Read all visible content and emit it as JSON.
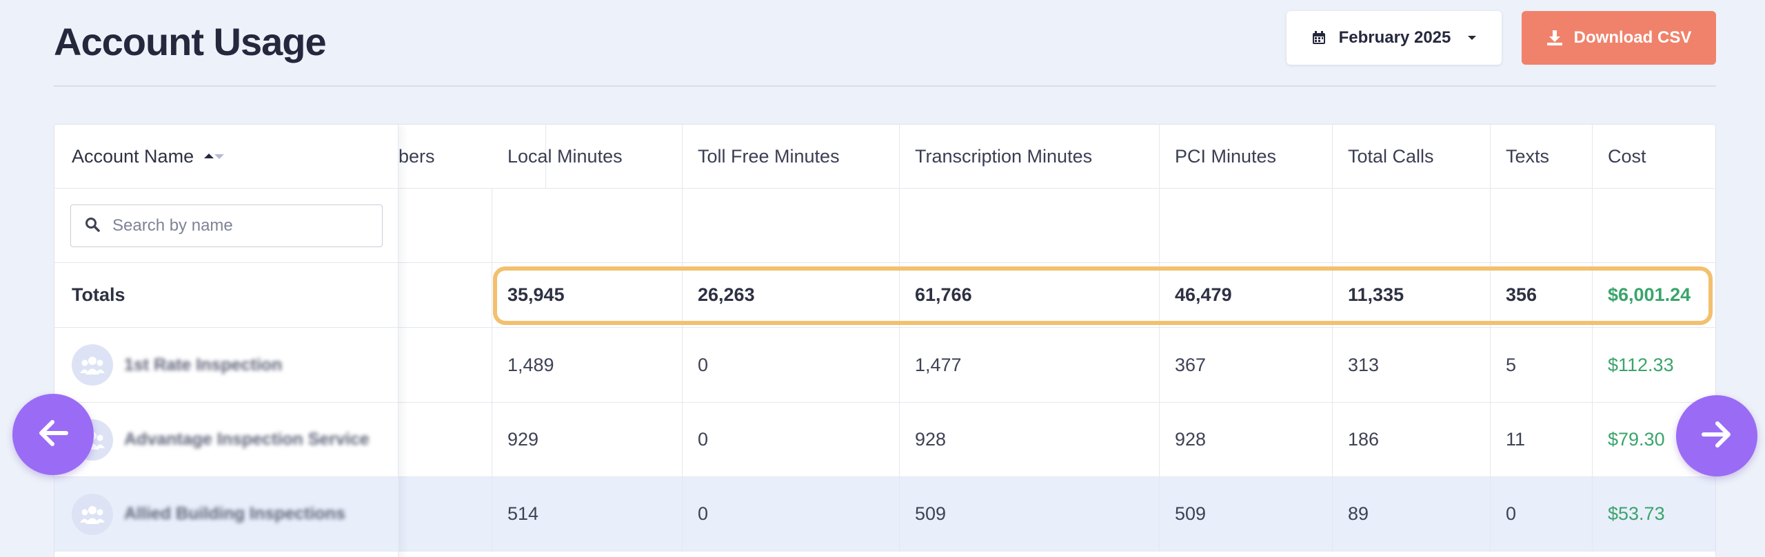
{
  "header": {
    "title": "Account Usage",
    "month_label": "February 2025",
    "download_label": "Download CSV"
  },
  "table": {
    "frozen_header": "Account Name",
    "columns": [
      "bers",
      "Local Minutes",
      "Toll Free Minutes",
      "Transcription Minutes",
      "PCI Minutes",
      "Total Calls",
      "Texts",
      "Cost"
    ],
    "search_placeholder": "Search by name",
    "totals": {
      "label": "Totals",
      "values": [
        "",
        "35,945",
        "26,263",
        "61,766",
        "46,479",
        "11,335",
        "356",
        "$6,001.24"
      ]
    },
    "rows": [
      {
        "name": "1st Rate Inspection",
        "values": [
          "",
          "1,489",
          "0",
          "1,477",
          "367",
          "313",
          "5",
          "$112.33"
        ]
      },
      {
        "name": "Advantage Inspection Service",
        "values": [
          "",
          "929",
          "0",
          "928",
          "928",
          "186",
          "11",
          "$79.30"
        ]
      },
      {
        "name": "Allied Building Inspections",
        "values": [
          "",
          "514",
          "0",
          "509",
          "509",
          "89",
          "0",
          "$53.73"
        ]
      }
    ]
  },
  "colors": {
    "accent_purple": "#9a6cf5",
    "download_orange": "#f0826b",
    "cost_green": "#3aa46b",
    "highlight_outline": "#f2c06e"
  },
  "icons": {
    "calendar": "calendar-icon",
    "caret": "caret-down-icon",
    "download": "download-icon",
    "search": "search-icon",
    "avatar": "group-avatar-icon",
    "prev": "arrow-left-icon",
    "next": "arrow-right-icon"
  }
}
